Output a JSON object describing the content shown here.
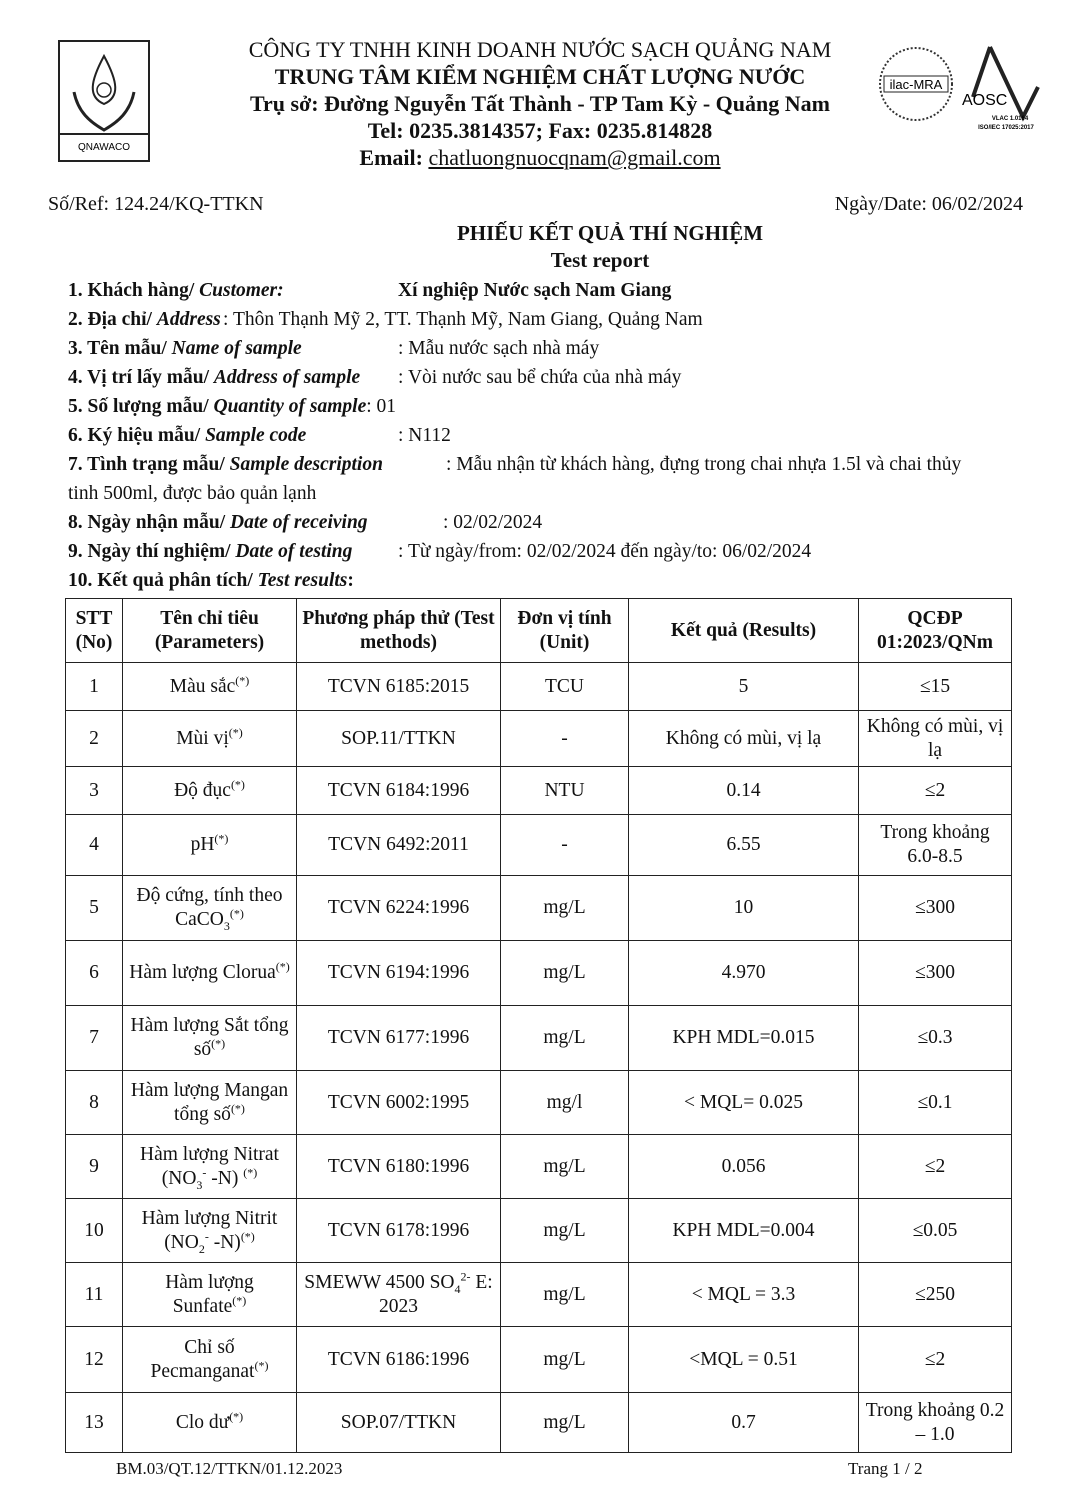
{
  "header": {
    "company": "CÔNG TY TNHH KINH DOANH NƯỚC SẠCH QUẢNG NAM",
    "center": "TRUNG TÂM KIỂM NGHIỆM CHẤT LƯỢNG NƯỚC",
    "address": "Trụ sở: Đường Nguyễn Tất Thành - TP Tam Kỳ -  Quảng Nam",
    "phone": "Tel: 0235.3814357; Fax: 0235.814828",
    "email_label": "Email: ",
    "email": "chatluongnuocqnam@gmail.com",
    "logo_left_text": "QNAWACO",
    "logo_ilac_text": "ilac-MRA",
    "logo_aosc_text": "AOSC",
    "logo_aosc_sub1": "VLAC 1.0164",
    "logo_aosc_sub2": "ISO/IEC 17025:2017"
  },
  "ref": "Số/Ref: 124.24/KQ-TTKN",
  "date": "Ngày/Date: 06/02/2024",
  "title": "PHIẾU KẾT QUẢ THÍ NGHIỆM",
  "subtitle": "Test report",
  "info": [
    {
      "label": "1. Khách hàng/ ",
      "label_en": "Customer:",
      "value": "Xí nghiệp Nước sạch Nam Giang"
    },
    {
      "label": "2. Địa chỉ/ ",
      "label_en": "Address",
      "value": ":      Thôn Thạnh Mỹ 2, TT. Thạnh Mỹ, Nam Giang, Quảng Nam"
    },
    {
      "label": "3. Tên mẫu/ ",
      "label_en": "Name of sample",
      "value": ": Mẫu nước sạch nhà máy"
    },
    {
      "label": "4. Vị trí lấy mẫu/ ",
      "label_en": "Address of sample",
      "value": ": Vòi nước sau bể chứa của nhà máy"
    },
    {
      "label": "5. Số lượng mẫu/ ",
      "label_en": "Quantity of sample",
      "value": ": 01"
    },
    {
      "label": "6. Ký hiệu mẫu/ ",
      "label_en": "Sample code",
      "value": ": N112"
    },
    {
      "label": "7. Tình trạng mẫu/ ",
      "label_en": "Sample description",
      "value": ": Mẫu nhận từ khách hàng, đựng trong chai nhựa 1.5l và chai thủy",
      "value2": "tinh 500ml, được bảo quản lạnh"
    },
    {
      "label": "8. Ngày nhận mẫu/ ",
      "label_en": "Date of receiving",
      "value": ": 02/02/2024"
    },
    {
      "label": "9. Ngày thí nghiệm/ ",
      "label_en": "Date of testing",
      "value": ": Từ ngày/from: 02/02/2024  đến ngày/to: 06/02/2024"
    },
    {
      "label": "10. Kết quả phân tích/ ",
      "label_en": "Test results",
      "value": ":"
    }
  ],
  "table": {
    "headers": [
      "STT (No)",
      "Tên chỉ tiêu (Parameters)",
      "Phương pháp thử (Test methods)",
      "Đơn vị tính (Unit)",
      "Kết quả (Results)",
      "QCĐP 01:2023/QNm"
    ],
    "rows": [
      {
        "no": "1",
        "param": [
          {
            "t": "Màu sắc"
          },
          {
            "t": "(*)",
            "s": "sup"
          }
        ],
        "method": [
          {
            "t": "TCVN 6185:2015"
          }
        ],
        "unit": "TCU",
        "result": "5",
        "limit": "≤15"
      },
      {
        "no": "2",
        "param": [
          {
            "t": "Mùi vị"
          },
          {
            "t": "(*)",
            "s": "sup"
          }
        ],
        "method": [
          {
            "t": "SOP.11/TTKN"
          }
        ],
        "unit": "-",
        "result": "Không có mùi, vị lạ",
        "limit": "Không có mùi, vị lạ"
      },
      {
        "no": "3",
        "param": [
          {
            "t": "Độ đục"
          },
          {
            "t": "(*)",
            "s": "sup"
          }
        ],
        "method": [
          {
            "t": "TCVN 6184:1996"
          }
        ],
        "unit": "NTU",
        "result": "0.14",
        "limit": "≤2"
      },
      {
        "no": "4",
        "param": [
          {
            "t": "pH"
          },
          {
            "t": "(*)",
            "s": "sup"
          }
        ],
        "method": [
          {
            "t": "TCVN 6492:2011"
          }
        ],
        "unit": "-",
        "result": "6.55",
        "limit": "Trong khoảng 6.0-8.5"
      },
      {
        "no": "5",
        "param": [
          {
            "t": "Độ cứng, tính theo CaCO"
          },
          {
            "t": "3",
            "s": "sub"
          },
          {
            "t": "(*)",
            "s": "sup"
          }
        ],
        "method": [
          {
            "t": "TCVN 6224:1996"
          }
        ],
        "unit": "mg/L",
        "result": "10",
        "limit": "≤300"
      },
      {
        "no": "6",
        "param": [
          {
            "t": "Hàm lượng Clorua"
          },
          {
            "t": "(*)",
            "s": "sup"
          }
        ],
        "method": [
          {
            "t": "TCVN 6194:1996"
          }
        ],
        "unit": "mg/L",
        "result": "4.970",
        "limit": "≤300"
      },
      {
        "no": "7",
        "param": [
          {
            "t": "Hàm lượng Sắt tổng số"
          },
          {
            "t": "(*)",
            "s": "sup"
          }
        ],
        "method": [
          {
            "t": "TCVN 6177:1996"
          }
        ],
        "unit": "mg/L",
        "result": "KPH MDL=0.015",
        "limit": "≤0.3"
      },
      {
        "no": "8",
        "param": [
          {
            "t": "Hàm lượng Mangan tổng số"
          },
          {
            "t": "(*)",
            "s": "sup"
          }
        ],
        "method": [
          {
            "t": "TCVN 6002:1995"
          }
        ],
        "unit": "mg/l",
        "result": "< MQL= 0.025",
        "limit": "≤0.1"
      },
      {
        "no": "9",
        "param": [
          {
            "t": "Hàm lượng Nitrat (NO"
          },
          {
            "t": "3",
            "s": "sub"
          },
          {
            "t": "-",
            "s": "sup"
          },
          {
            "t": " -N) "
          },
          {
            "t": "(*)",
            "s": "sup"
          }
        ],
        "method": [
          {
            "t": "TCVN 6180:1996"
          }
        ],
        "unit": "mg/L",
        "result": "0.056",
        "limit": "≤2"
      },
      {
        "no": "10",
        "param": [
          {
            "t": "Hàm lượng Nitrit (NO"
          },
          {
            "t": "2",
            "s": "sub"
          },
          {
            "t": "-",
            "s": "sup"
          },
          {
            "t": " -N)"
          },
          {
            "t": "(*)",
            "s": "sup"
          }
        ],
        "method": [
          {
            "t": "TCVN 6178:1996"
          }
        ],
        "unit": "mg/L",
        "result": "KPH MDL=0.004",
        "limit": "≤0.05"
      },
      {
        "no": "11",
        "param": [
          {
            "t": "Hàm lượng Sunfate"
          },
          {
            "t": "(*)",
            "s": "sup"
          }
        ],
        "method": [
          {
            "t": "SMEWW 4500 SO"
          },
          {
            "t": "4",
            "s": "sub"
          },
          {
            "t": "2-",
            "s": "sup"
          },
          {
            "t": " E: 2023"
          }
        ],
        "unit": "mg/L",
        "result": "< MQL = 3.3",
        "limit": "≤250"
      },
      {
        "no": "12",
        "param": [
          {
            "t": "Chỉ số Pecmanganat"
          },
          {
            "t": "(*)",
            "s": "sup"
          }
        ],
        "method": [
          {
            "t": "TCVN 6186:1996"
          }
        ],
        "unit": "mg/L",
        "result": "<MQL = 0.51",
        "limit": "≤2"
      },
      {
        "no": "13",
        "param": [
          {
            "t": "Clo dư"
          },
          {
            "t": "(*)",
            "s": "sup"
          }
        ],
        "method": [
          {
            "t": "SOP.07/TTKN"
          }
        ],
        "unit": "mg/L",
        "result": "0.7",
        "limit": "Trong khoảng 0.2 – 1.0"
      }
    ]
  },
  "footer": {
    "form_code": "BM.03/QT.12/TTKN/01.12.2023",
    "page": "Trang 1 / 2"
  }
}
